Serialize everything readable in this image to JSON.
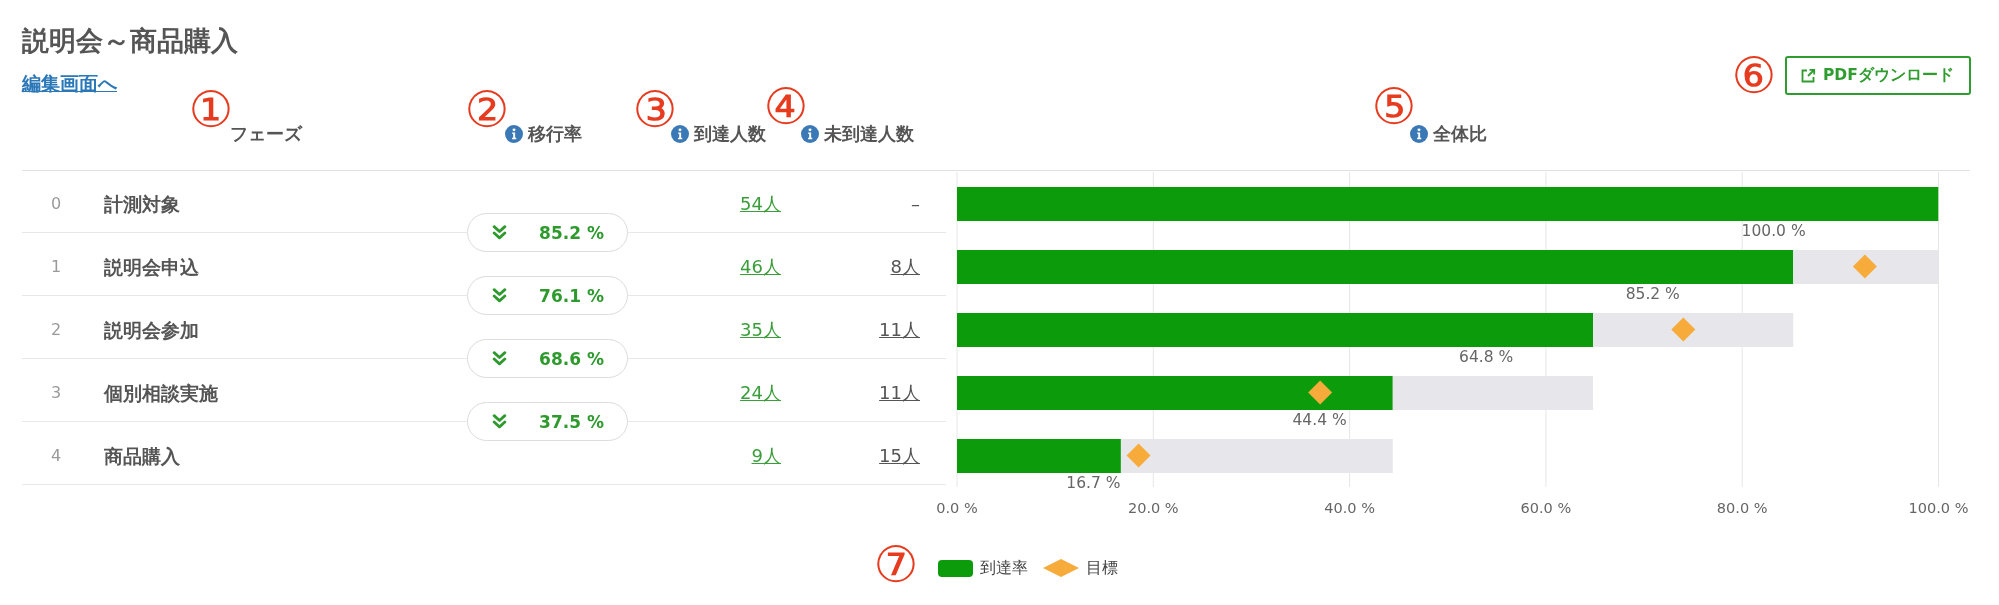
{
  "chart_data": [
    {
      "type": "other",
      "title": "説明会～商品購入",
      "subtitle": "編集画面へ",
      "ylabel": "フェーズ",
      "categories": [
        "計測対象",
        "説明会申込",
        "説明会参加",
        "個別相談実施",
        "商品購入"
      ],
      "series": [
        {
          "values": [
            0,
            1,
            2,
            3,
            4
          ],
          "value_labels": [
            "0",
            "1",
            "2",
            "3",
            "4"
          ]
        },
        {
          "name": "到達人数",
          "values": [
            54,
            46,
            35,
            24,
            9
          ],
          "value_labels": [
            "54人",
            "46人",
            "35人",
            "24人",
            "9人"
          ]
        },
        {
          "name": "未到達人数",
          "values": [
            null,
            8,
            11,
            11,
            15
          ],
          "value_labels": [
            "–",
            "8人",
            "11人",
            "11人",
            "15人"
          ]
        }
      ],
      "annotations": [
        "①",
        "②",
        "③",
        "④"
      ]
    },
    {
      "type": "bar",
      "title": "全体比",
      "orientation": "horizontal",
      "stacked": true,
      "categories": [
        null,
        null,
        null,
        null,
        null
      ],
      "series": [
        {
          "name": "到達率",
          "color": "#0b9b0b",
          "values": [
            100,
            85.2,
            64.8,
            44.4,
            16.7
          ],
          "value_labels": [
            "100.0 %",
            "85.2 %",
            "64.8 %",
            "44.4 %",
            "16.7 %"
          ]
        },
        {
          "color": "#e7e7eb",
          "values": [
            null,
            14.8,
            20.4,
            20.4,
            27.7
          ]
        },
        {
          "name": "目標",
          "type": "scatter",
          "marker": "diamond",
          "color": "#f6ab3b",
          "values": [
            null,
            92.5,
            74,
            37,
            18.5
          ]
        }
      ],
      "xlim": [
        0,
        100
      ],
      "xticks": [
        {
          "value": 0,
          "label": "0.0 %"
        },
        {
          "value": 20,
          "label": "20.0 %"
        },
        {
          "value": 40,
          "label": "40.0 %"
        },
        {
          "value": 60,
          "label": "60.0 %"
        },
        {
          "value": 80,
          "label": "80.0 %"
        },
        {
          "value": 100,
          "label": "100.0 %"
        }
      ],
      "grid": "x",
      "legend": "bottom",
      "annotations": [
        "PDFダウンロード",
        "⑤",
        "⑥",
        "⑦"
      ]
    },
    {
      "type": "other",
      "series": [
        {
          "name": "移行率",
          "values": [
            85.2,
            76.1,
            68.6,
            37.5
          ],
          "value_labels": [
            "85.2 %",
            "76.1 %",
            "68.6 %",
            "37.5 %"
          ]
        }
      ]
    }
  ]
}
